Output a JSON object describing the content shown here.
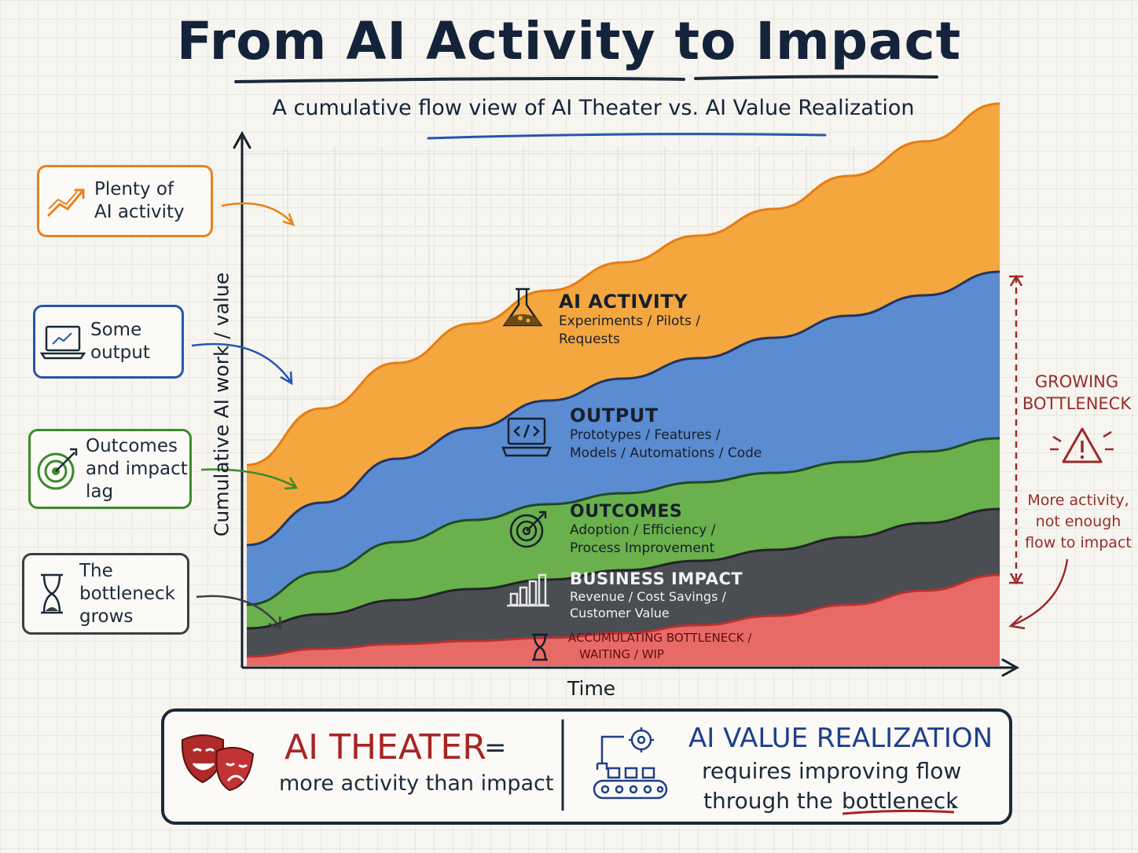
{
  "title": "From AI Activity to Impact",
  "subtitle": "A cumulative flow view of AI Theater vs. AI Value Realization",
  "chart_data": {
    "type": "area",
    "xlabel": "Time",
    "ylabel": "Cumulative AI work / value",
    "layers": [
      {
        "name": "AI ACTIVITY",
        "description": "Experiments / Pilots / Requests",
        "color": "#f4a63f",
        "line": "#e67e12"
      },
      {
        "name": "OUTPUT",
        "description": "Prototypes / Features / Models / Automations / Code",
        "color": "#5b8bd1",
        "line": "#1f3566"
      },
      {
        "name": "OUTCOMES",
        "description": "Adoption / Efficiency / Process Improvement",
        "color": "#6ab04c",
        "line": "#1f4a20"
      },
      {
        "name": "BUSINESS IMPACT",
        "description": "Revenue / Cost Savings / Customer Value",
        "color": "#4a4d52",
        "line": "#222428"
      },
      {
        "name": "ACCUMULATING BOTTLENECK / WAITING / WIP",
        "description": "",
        "color": "#e86a66",
        "line": "#b63232"
      }
    ]
  },
  "layer_labels": {
    "activity": {
      "title": "AI ACTIVITY",
      "sub": "Experiments / Pilots /\nRequests"
    },
    "output": {
      "title": "OUTPUT",
      "sub": "Prototypes / Features /\nModels / Automations / Code"
    },
    "outcomes": {
      "title": "OUTCOMES",
      "sub": "Adoption / Efficiency /\nProcess Improvement"
    },
    "impact": {
      "title": "BUSINESS IMPACT",
      "sub": "Revenue / Cost Savings /\nCustomer Value"
    },
    "bottleneck": {
      "l1": "ACCUMULATING BOTTLENECK /",
      "l2": "WAITING / WIP"
    }
  },
  "callouts": [
    {
      "text": "Plenty of\nAI activity",
      "color": "#e8821e",
      "icon": "trend-up-icon"
    },
    {
      "text": "Some\noutput",
      "color": "#2456b0",
      "icon": "laptop-chart-icon"
    },
    {
      "text": "Outcomes\nand impact\nlag",
      "color": "#3d8a2e",
      "icon": "target-icon"
    },
    {
      "text": "The\nbottleneck\ngrows",
      "color": "#3a3f46",
      "icon": "hourglass-icon"
    }
  ],
  "bottleneck_note": {
    "title": "GROWING\nBOTTLENECK",
    "text": "More activity,\nnot enough\nflow to impact",
    "icon": "warning-icon",
    "color": "#9a2a2a"
  },
  "footer": {
    "theater_title": "AI THEATER",
    "theater_eq": "=",
    "theater_desc": "more activity than impact",
    "value_title": "AI VALUE REALIZATION",
    "value_line1": "requires improving flow",
    "value_line2a": "through the",
    "value_line2b": "bottleneck",
    "value_line2c": ".",
    "theater_icon": "theater-masks-icon",
    "value_icon": "robot-arm-conveyor-icon"
  }
}
